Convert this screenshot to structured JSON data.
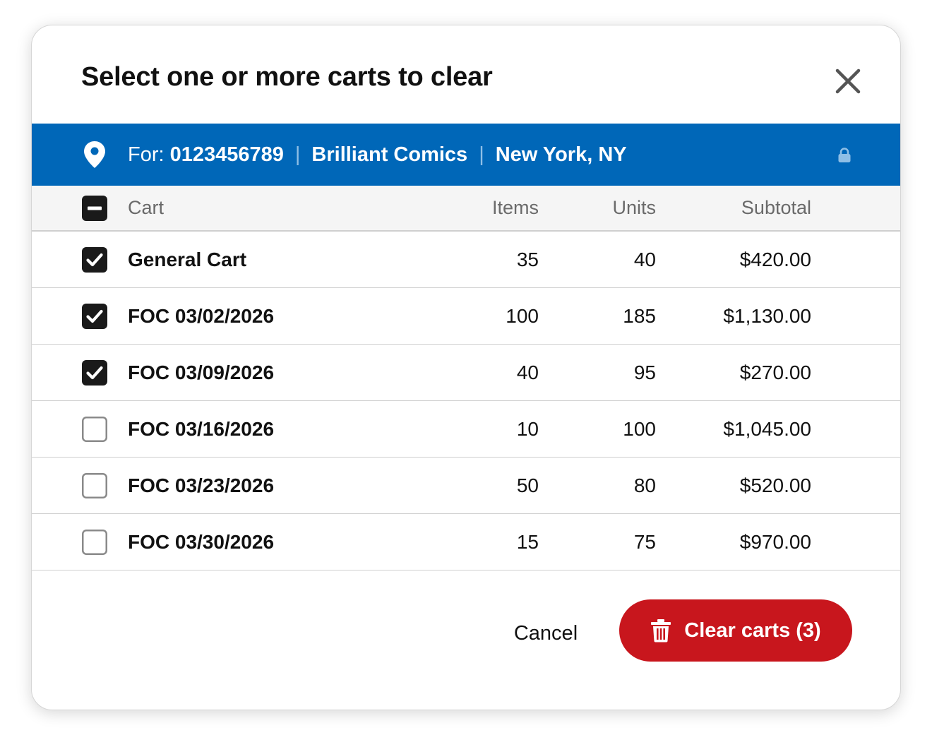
{
  "dialog": {
    "title": "Select one or more carts to clear",
    "close_icon": "close-icon"
  },
  "account": {
    "for_label": "For:",
    "account_number": "0123456789",
    "store_name": "Brilliant Comics",
    "location": "New York, NY",
    "separator": "|",
    "pin_icon": "location-pin-icon",
    "lock_icon": "lock-icon"
  },
  "table": {
    "select_all_state": "indeterminate",
    "columns": {
      "cart": "Cart",
      "items": "Items",
      "units": "Units",
      "subtotal": "Subtotal"
    },
    "rows": [
      {
        "name": "General Cart",
        "items": "35",
        "units": "40",
        "subtotal": "$420.00",
        "checked": true
      },
      {
        "name": "FOC 03/02/2026",
        "items": "100",
        "units": "185",
        "subtotal": "$1,130.00",
        "checked": true
      },
      {
        "name": "FOC 03/09/2026",
        "items": "40",
        "units": "95",
        "subtotal": "$270.00",
        "checked": true
      },
      {
        "name": "FOC 03/16/2026",
        "items": "10",
        "units": "100",
        "subtotal": "$1,045.00",
        "checked": false
      },
      {
        "name": "FOC 03/23/2026",
        "items": "50",
        "units": "80",
        "subtotal": "$520.00",
        "checked": false
      },
      {
        "name": "FOC 03/30/2026",
        "items": "15",
        "units": "75",
        "subtotal": "$970.00",
        "checked": false
      }
    ]
  },
  "footer": {
    "cancel_label": "Cancel",
    "clear_label": "Clear carts (3)",
    "trash_icon": "trash-icon"
  },
  "colors": {
    "account_bar": "#0067b8",
    "danger_button": "#c8161d",
    "header_row": "#f5f5f5",
    "checkbox_checked": "#1a1a1a"
  }
}
